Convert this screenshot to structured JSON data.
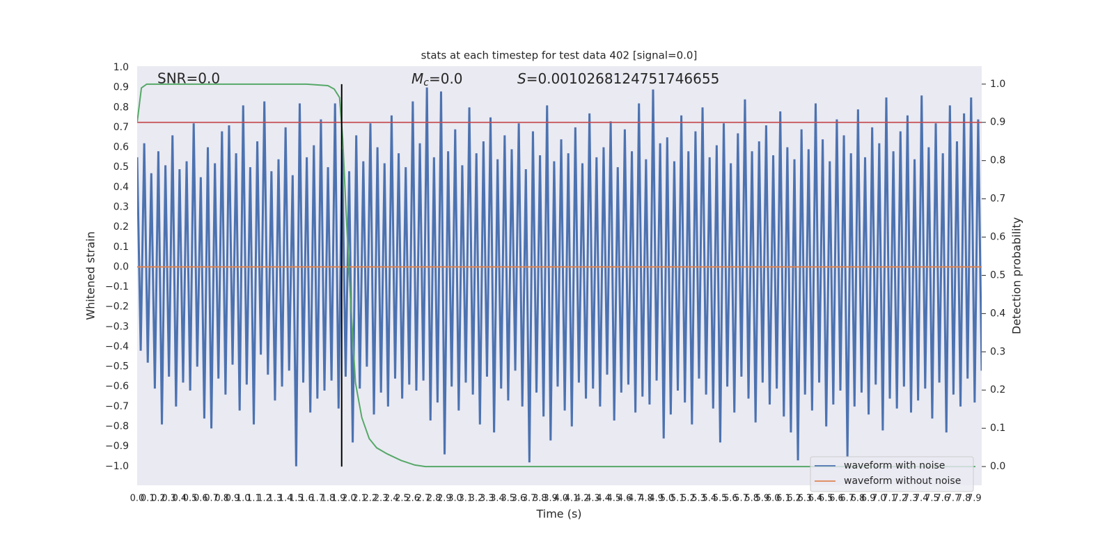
{
  "chart_data": {
    "type": "line",
    "title": "stats at each timestep for test data 402 [signal=0.0]",
    "x_label": "Time (s)",
    "y_label": "Whitened strain",
    "y2_label": "Detection probability",
    "annotations": {
      "snr": "SNR=0.0",
      "mc_symbol": "M",
      "mc_subscript": "c",
      "mc_text": "=0.0",
      "s_symbol": "S",
      "s_text": "=0.0010268124751746655"
    },
    "grid": true,
    "legend": "lower right",
    "xlim": [
      0,
      7.97
    ],
    "ylim": [
      -1.095,
      1.007
    ],
    "y2lim": [
      -0.049,
      1.047
    ],
    "xticks": [
      {
        "value": 0,
        "label": "0.0"
      },
      0.1,
      0.2,
      0.3,
      0.4,
      0.5,
      0.6,
      0.7,
      0.8,
      0.9,
      {
        "value": 1,
        "label": "1.0"
      },
      1.1,
      1.2,
      1.3,
      1.4,
      1.5,
      1.6,
      1.7,
      1.8,
      1.9,
      {
        "value": 2,
        "label": "2.0"
      },
      2.1,
      2.2,
      2.3,
      2.4,
      2.5,
      2.6,
      2.7,
      2.8,
      2.9,
      {
        "value": 3,
        "label": "3.0"
      },
      3.1,
      3.2,
      3.3,
      3.4,
      3.5,
      3.6,
      3.7,
      3.8,
      3.9,
      {
        "value": 4,
        "label": "4.0"
      },
      4.1,
      4.2,
      4.3,
      4.4,
      4.5,
      4.6,
      4.7,
      4.8,
      4.9,
      {
        "value": 5,
        "label": "5.0"
      },
      5.1,
      5.2,
      5.3,
      5.4,
      5.5,
      5.6,
      5.7,
      5.8,
      5.9,
      {
        "value": 6,
        "label": "6.0"
      },
      6.1,
      6.2,
      6.3,
      6.4,
      6.5,
      6.6,
      6.7,
      6.8,
      6.9,
      {
        "value": 7,
        "label": "7.0"
      },
      7.1,
      7.2,
      7.3,
      7.4,
      7.5,
      7.6,
      7.7,
      7.8,
      7.9
    ],
    "yticks": [
      {
        "value": -1,
        "label": "−1.0"
      },
      {
        "value": -0.9,
        "label": "−0.9"
      },
      {
        "value": -0.8,
        "label": "−0.8"
      },
      {
        "value": -0.7,
        "label": "−0.7"
      },
      {
        "value": -0.6,
        "label": "−0.6"
      },
      {
        "value": -0.5,
        "label": "−0.5"
      },
      {
        "value": -0.4,
        "label": "−0.4"
      },
      {
        "value": -0.3,
        "label": "−0.3"
      },
      {
        "value": -0.2,
        "label": "−0.2"
      },
      {
        "value": -0.1,
        "label": "−0.1"
      },
      {
        "value": 0,
        "label": "0.0"
      },
      0.1,
      0.2,
      0.3,
      0.4,
      0.5,
      0.6,
      0.7,
      0.8,
      0.9,
      {
        "value": 1,
        "label": "1.0"
      }
    ],
    "y2ticks": [
      {
        "value": 0,
        "label": "0.0"
      },
      0.1,
      0.2,
      0.3,
      0.4,
      0.5,
      0.6,
      0.7,
      0.8,
      0.9,
      {
        "value": 1,
        "label": "1.0"
      }
    ],
    "series": [
      {
        "name": "waveform with noise",
        "color": "#4c72b0",
        "values": [
          0.55,
          -0.42,
          0.62,
          -0.48,
          0.47,
          -0.61,
          0.58,
          -0.79,
          0.51,
          -0.55,
          0.66,
          -0.7,
          0.49,
          -0.58,
          0.53,
          -0.62,
          0.72,
          -0.5,
          0.45,
          -0.76,
          0.6,
          -0.81,
          0.52,
          -0.56,
          0.68,
          -0.64,
          0.71,
          -0.49,
          0.57,
          -0.72,
          0.81,
          -0.59,
          0.5,
          -0.79,
          0.63,
          -0.44,
          0.83,
          -0.54,
          0.48,
          -0.67,
          0.54,
          -0.6,
          0.7,
          -0.52,
          0.46,
          -1.0,
          0.82,
          -0.58,
          0.55,
          -0.73,
          0.61,
          -0.66,
          0.74,
          -0.62,
          0.5,
          -0.57,
          0.82,
          -0.71,
          0.59,
          -0.55,
          0.48,
          -0.88,
          0.66,
          -0.61,
          0.53,
          -0.5,
          0.72,
          -0.74,
          0.6,
          -0.63,
          0.52,
          -0.7,
          0.76,
          -0.56,
          0.57,
          -0.66,
          0.5,
          -0.59,
          0.83,
          -0.62,
          0.62,
          -0.57,
          0.9,
          -0.77,
          0.55,
          -0.68,
          0.88,
          -0.94,
          0.58,
          -0.6,
          0.69,
          -0.72,
          0.51,
          -0.58,
          0.8,
          -0.64,
          0.57,
          -0.79,
          0.63,
          -0.55,
          0.75,
          -0.83,
          0.54,
          -0.61,
          0.66,
          -0.67,
          0.59,
          -0.52,
          0.72,
          -0.7,
          0.49,
          -0.98,
          0.68,
          -0.63,
          0.56,
          -0.75,
          0.81,
          -0.87,
          0.53,
          -0.6,
          0.64,
          -0.72,
          0.57,
          -0.8,
          0.7,
          -0.58,
          0.52,
          -0.66,
          0.77,
          -0.61,
          0.55,
          -0.7,
          0.6,
          -0.54,
          0.73,
          -0.77,
          0.5,
          -0.63,
          0.69,
          -0.59,
          0.58,
          -0.73,
          0.82,
          -0.65,
          0.54,
          -0.69,
          0.89,
          -0.57,
          0.62,
          -0.86,
          0.65,
          -0.74,
          0.53,
          -0.62,
          0.76,
          -0.68,
          0.58,
          -0.79,
          0.68,
          -0.56,
          0.8,
          -0.64,
          0.55,
          -0.71,
          0.61,
          -0.88,
          0.72,
          -0.6,
          0.52,
          -0.73,
          0.67,
          -0.55,
          0.84,
          -0.66,
          0.58,
          -0.78,
          0.63,
          -0.58,
          0.71,
          -0.69,
          0.56,
          -0.61,
          0.78,
          -0.75,
          0.6,
          -0.83,
          0.54,
          -0.97,
          0.69,
          -0.64,
          0.59,
          -0.72,
          0.82,
          -0.58,
          0.64,
          -0.8,
          0.53,
          -0.69,
          0.74,
          -0.62,
          0.66,
          -0.95,
          0.57,
          -0.7,
          0.79,
          -0.63,
          0.55,
          -0.74,
          0.7,
          -0.59,
          0.62,
          -0.82,
          0.85,
          -0.66,
          0.58,
          -0.71,
          0.68,
          -0.6,
          0.76,
          -0.73,
          0.54,
          -0.67,
          0.86,
          -0.61,
          0.6,
          -0.76,
          0.72,
          -0.58,
          0.57,
          -0.83,
          0.81,
          -0.64,
          0.63,
          -0.7,
          0.77,
          -0.56,
          0.85,
          -0.68,
          0.74,
          -0.52
        ]
      },
      {
        "name": "waveform without noise",
        "color": "#dd8452",
        "values": [
          0,
          0
        ]
      }
    ],
    "probability": {
      "axis": "y2",
      "color": "#55a868",
      "x": [
        0,
        0.04,
        0.09,
        0.5,
        1.0,
        1.6,
        1.8,
        1.86,
        1.91,
        1.94,
        1.97,
        2.01,
        2.06,
        2.12,
        2.19,
        2.26,
        2.36,
        2.49,
        2.62,
        2.72,
        4.0,
        6.0,
        7.91
      ],
      "values": [
        0.9,
        0.99,
        1.0,
        1.0,
        1.0,
        1.0,
        0.996,
        0.987,
        0.965,
        0.856,
        0.674,
        0.455,
        0.219,
        0.128,
        0.073,
        0.049,
        0.033,
        0.016,
        0.004,
        0,
        0,
        0,
        0
      ]
    },
    "threshold": {
      "axis": "y2",
      "color": "#c44e52",
      "value": 0.9
    },
    "marker_line": {
      "axis": "y2",
      "color": "#000000",
      "x": 1.93,
      "y": [
        0,
        1
      ]
    }
  }
}
